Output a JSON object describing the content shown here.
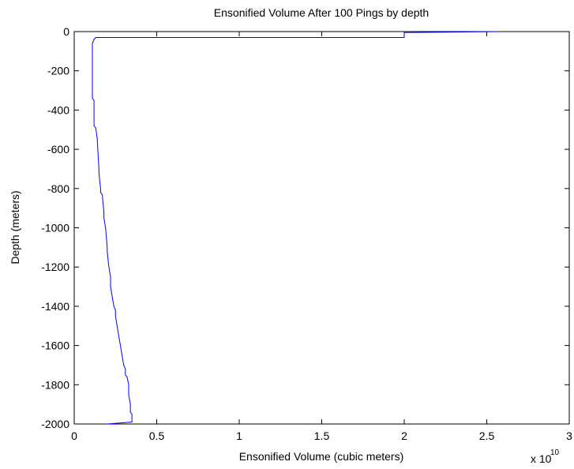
{
  "chart_data": {
    "type": "line",
    "title": "Ensonified Volume After 100 Pings by depth",
    "xlabel": "Ensonified Volume (cubic meters)",
    "ylabel": "Depth (meters)",
    "x_scale_base": "x 10",
    "x_scale_exponent": "10",
    "xlim": [
      0,
      3
    ],
    "ylim": [
      -2000,
      0
    ],
    "x_ticks": [
      0,
      0.5,
      1,
      1.5,
      2,
      2.5,
      3
    ],
    "x_tick_labels": [
      "0",
      "0.5",
      "1",
      "1.5",
      "2",
      "2.5",
      "3"
    ],
    "y_ticks": [
      0,
      -200,
      -400,
      -600,
      -800,
      -1000,
      -1200,
      -1400,
      -1600,
      -1800,
      -2000
    ],
    "y_tick_labels": [
      "0",
      "-200",
      "-400",
      "-600",
      "-800",
      "-1000",
      "-1200",
      "-1400",
      "-1600",
      "-1800",
      "-2000"
    ],
    "grid": false,
    "line_color": "#0000ff",
    "series": [
      {
        "x": [
          2.58,
          2.0,
          2.0,
          2.0,
          0.13,
          0.12,
          0.11,
          0.11,
          0.11,
          0.11,
          0.12,
          0.12,
          0.12,
          0.13,
          0.14,
          0.14,
          0.15,
          0.15,
          0.16,
          0.16,
          0.16,
          0.17,
          0.18,
          0.18,
          0.19,
          0.2,
          0.2,
          0.21,
          0.22,
          0.22,
          0.23,
          0.24,
          0.25,
          0.25,
          0.26,
          0.27,
          0.28,
          0.29,
          0.3,
          0.31,
          0.31,
          0.32,
          0.33,
          0.33,
          0.34,
          0.34,
          0.35,
          0.35,
          0.35,
          0.2
        ],
        "y": [
          0,
          -5,
          -20,
          -30,
          -30,
          -40,
          -60,
          -150,
          -250,
          -340,
          -350,
          -470,
          -480,
          -490,
          -550,
          -560,
          -700,
          -720,
          -800,
          -810,
          -820,
          -830,
          -920,
          -950,
          -1000,
          -1100,
          -1120,
          -1200,
          -1250,
          -1300,
          -1350,
          -1400,
          -1420,
          -1450,
          -1500,
          -1550,
          -1600,
          -1650,
          -1700,
          -1720,
          -1750,
          -1760,
          -1800,
          -1850,
          -1900,
          -1940,
          -1950,
          -1980,
          -1990,
          -2000
        ]
      }
    ]
  }
}
